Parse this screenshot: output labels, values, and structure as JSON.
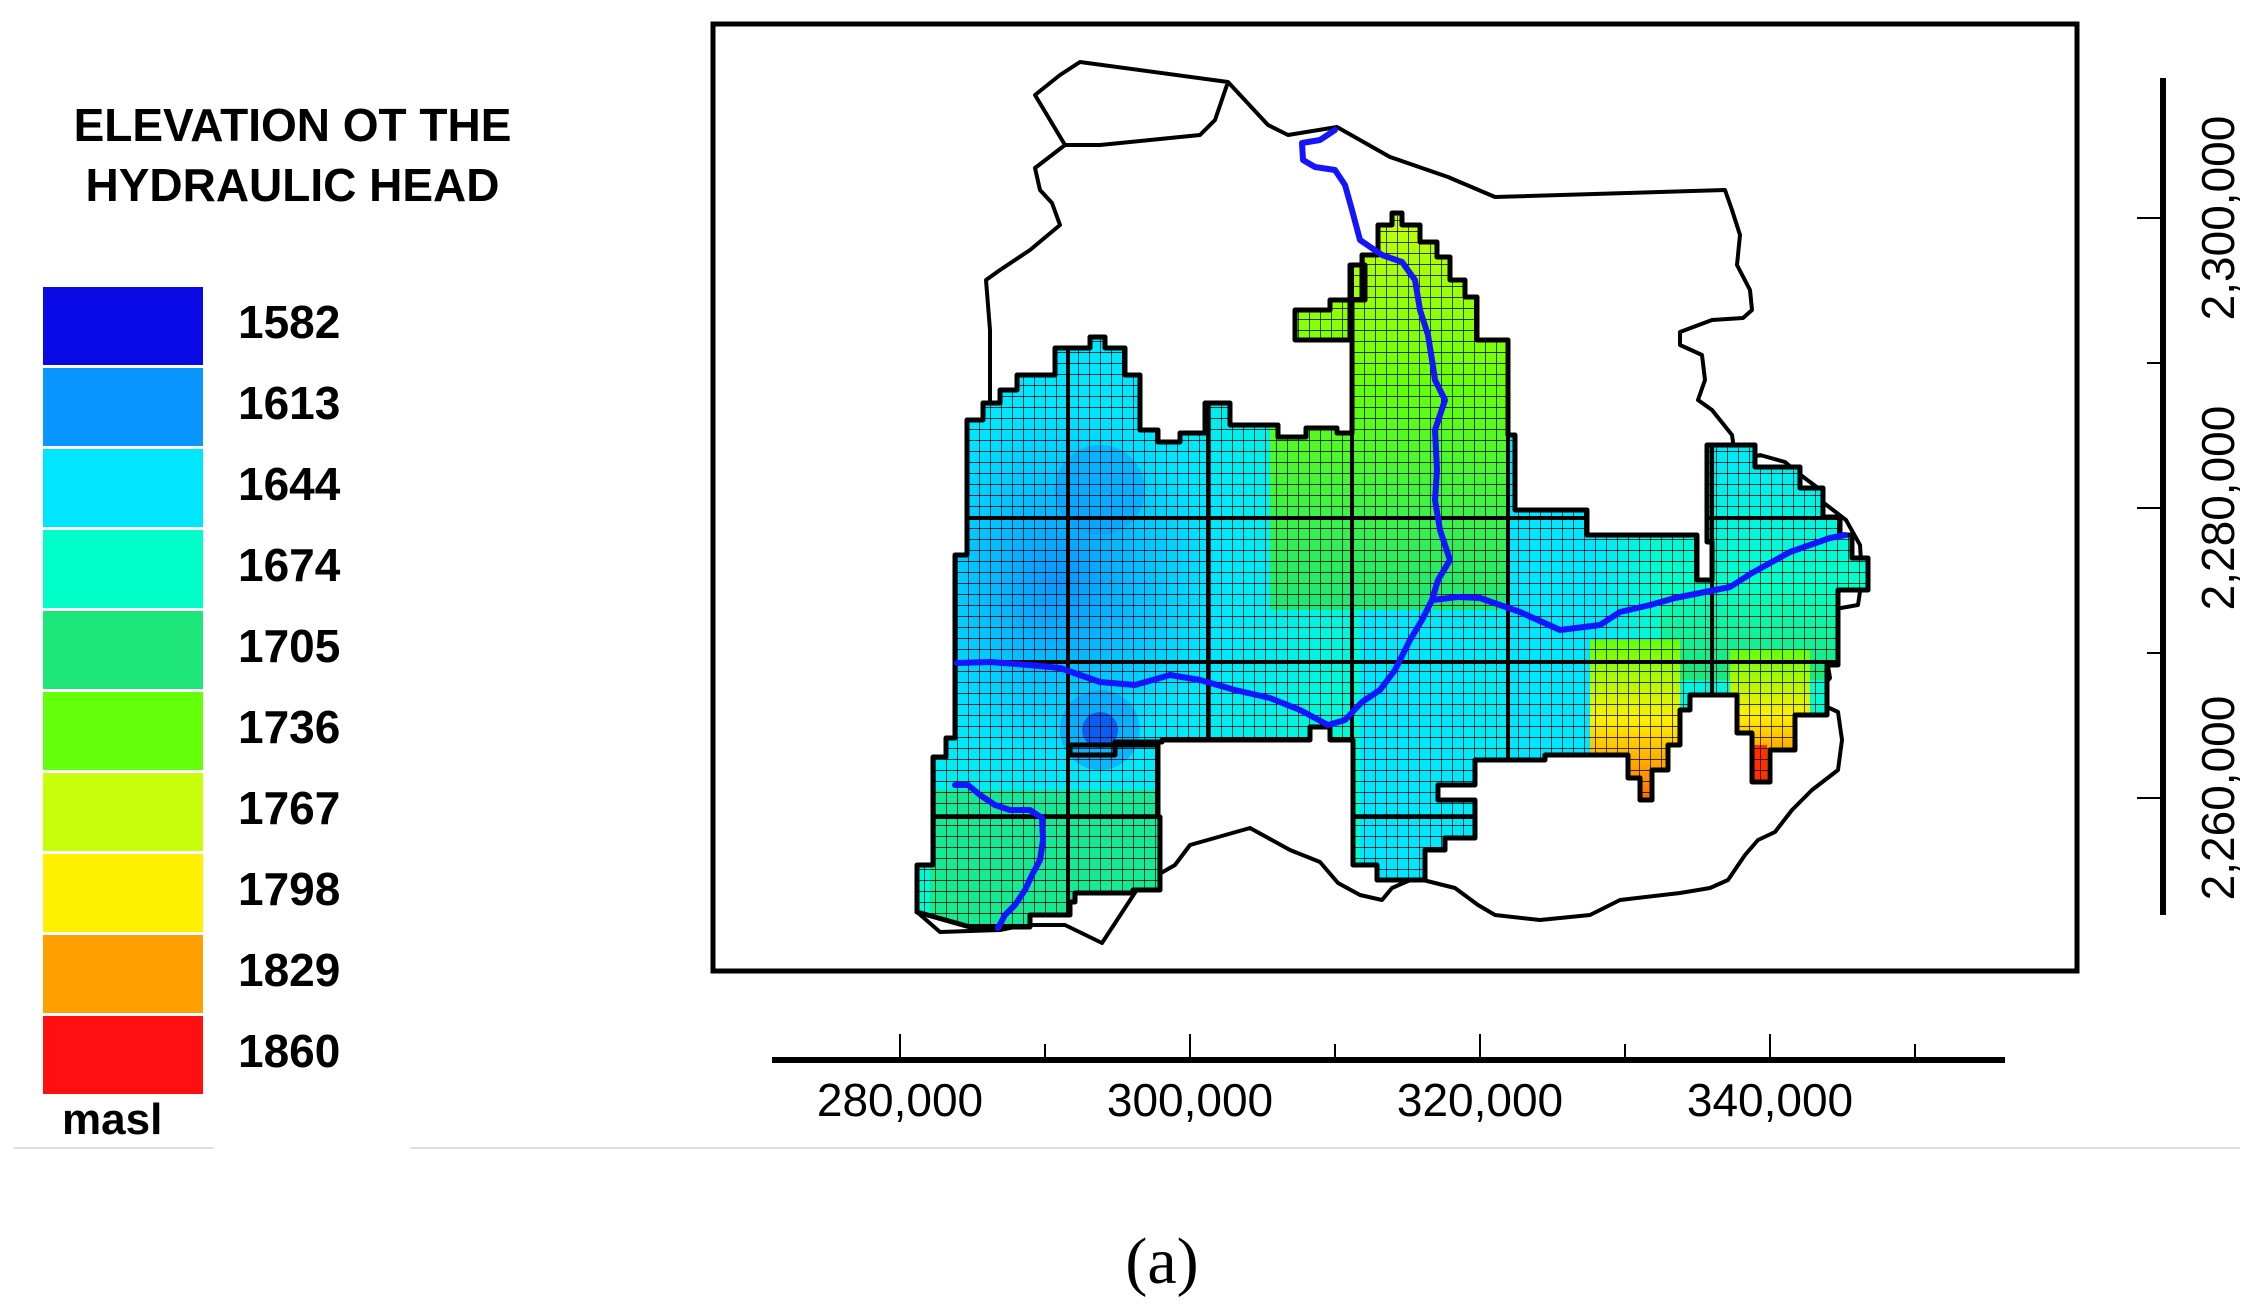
{
  "legend": {
    "title_line1": "ELEVATION OT THE",
    "title_line2": "HYDRAULIC HEAD",
    "unit": "masl",
    "items": [
      {
        "value": "1582",
        "color": "#0a0ae6"
      },
      {
        "value": "1613",
        "color": "#0a96ff"
      },
      {
        "value": "1644",
        "color": "#00e6ff"
      },
      {
        "value": "1674",
        "color": "#00ffc8"
      },
      {
        "value": "1705",
        "color": "#1ee678"
      },
      {
        "value": "1736",
        "color": "#64ff0a"
      },
      {
        "value": "1767",
        "color": "#c8ff0a"
      },
      {
        "value": "1798",
        "color": "#fff000"
      },
      {
        "value": "1829",
        "color": "#ffa000"
      },
      {
        "value": "1860",
        "color": "#ff0f0f"
      }
    ]
  },
  "axes": {
    "x_ticks": [
      "280,000",
      "300,000",
      "320,000",
      "340,000"
    ],
    "y_ticks": [
      "2,300,000",
      "2,280,000",
      "2,260,000"
    ]
  },
  "map": {
    "river_color": "#1414ff",
    "grid_line_color": "#000000",
    "boundary_color": "#000000"
  },
  "panel_label": "(a)"
}
